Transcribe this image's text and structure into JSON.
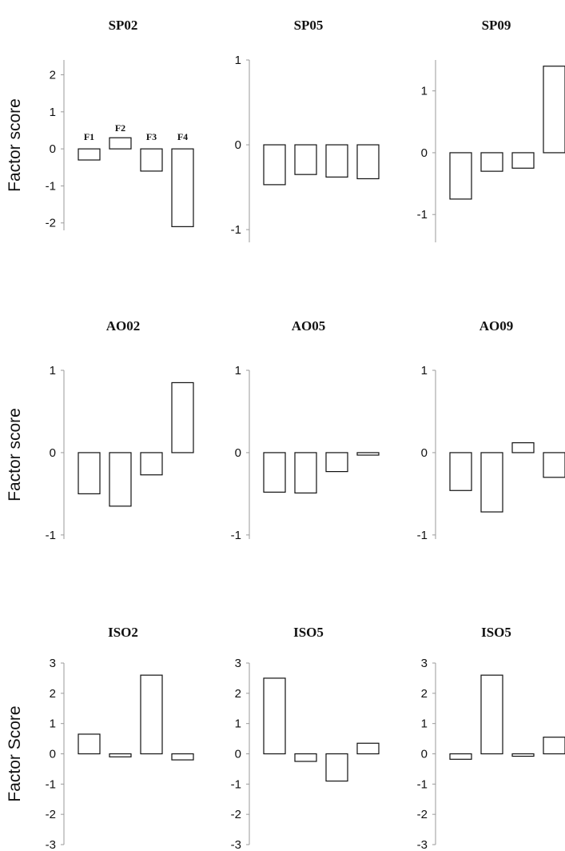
{
  "chart_data": [
    {
      "type": "bar",
      "title": "SP02",
      "ylabel": "Factor score",
      "ylim": [
        -2.2,
        2.4
      ],
      "yticks": [
        2,
        1,
        0,
        -1,
        -2
      ],
      "bar_labels": [
        "F1",
        "F2",
        "F3",
        "F4"
      ],
      "values": [
        -0.3,
        0.3,
        -0.6,
        -2.1
      ]
    },
    {
      "type": "bar",
      "title": "SP05",
      "ylabel": "",
      "ylim": [
        -1.15,
        1.0
      ],
      "yticks": [
        1,
        0,
        -1
      ],
      "values": [
        -0.47,
        -0.35,
        -0.38,
        -0.4
      ]
    },
    {
      "type": "bar",
      "title": "SP09",
      "ylabel": "",
      "ylim": [
        -1.45,
        1.5
      ],
      "yticks": [
        1,
        0,
        -1
      ],
      "values": [
        -0.75,
        -0.3,
        -0.25,
        1.4
      ]
    },
    {
      "type": "bar",
      "title": "AO02",
      "ylabel": "Factor score",
      "ylim": [
        -1.05,
        1.0
      ],
      "yticks": [
        1,
        0,
        -1
      ],
      "values": [
        -0.5,
        -0.65,
        -0.27,
        0.85
      ]
    },
    {
      "type": "bar",
      "title": "AO05",
      "ylabel": "",
      "ylim": [
        -1.05,
        1.0
      ],
      "yticks": [
        1,
        0,
        -1
      ],
      "values": [
        -0.48,
        -0.49,
        -0.23,
        -0.03
      ]
    },
    {
      "type": "bar",
      "title": "AO09",
      "ylabel": "",
      "ylim": [
        -1.05,
        1.0
      ],
      "yticks": [
        1,
        0,
        -1
      ],
      "values": [
        -0.46,
        -0.72,
        0.12,
        -0.3
      ]
    },
    {
      "type": "bar",
      "title": "ISO2",
      "ylabel": "Factor Score",
      "ylim": [
        -3.0,
        3.0
      ],
      "yticks": [
        3,
        2,
        1,
        0,
        -1,
        -2,
        -3
      ],
      "values": [
        0.65,
        -0.1,
        2.6,
        -0.2
      ]
    },
    {
      "type": "bar",
      "title": "ISO5",
      "ylabel": "",
      "ylim": [
        -3.0,
        3.0
      ],
      "yticks": [
        3,
        2,
        1,
        0,
        -1,
        -2,
        -3
      ],
      "values": [
        2.5,
        -0.25,
        -0.9,
        0.35
      ]
    },
    {
      "type": "bar",
      "title": "ISO5",
      "ylabel": "",
      "ylim": [
        -3.0,
        3.0
      ],
      "yticks": [
        3,
        2,
        1,
        0,
        -1,
        -2,
        -3
      ],
      "values": [
        -0.18,
        2.6,
        -0.08,
        0.55
      ]
    }
  ]
}
